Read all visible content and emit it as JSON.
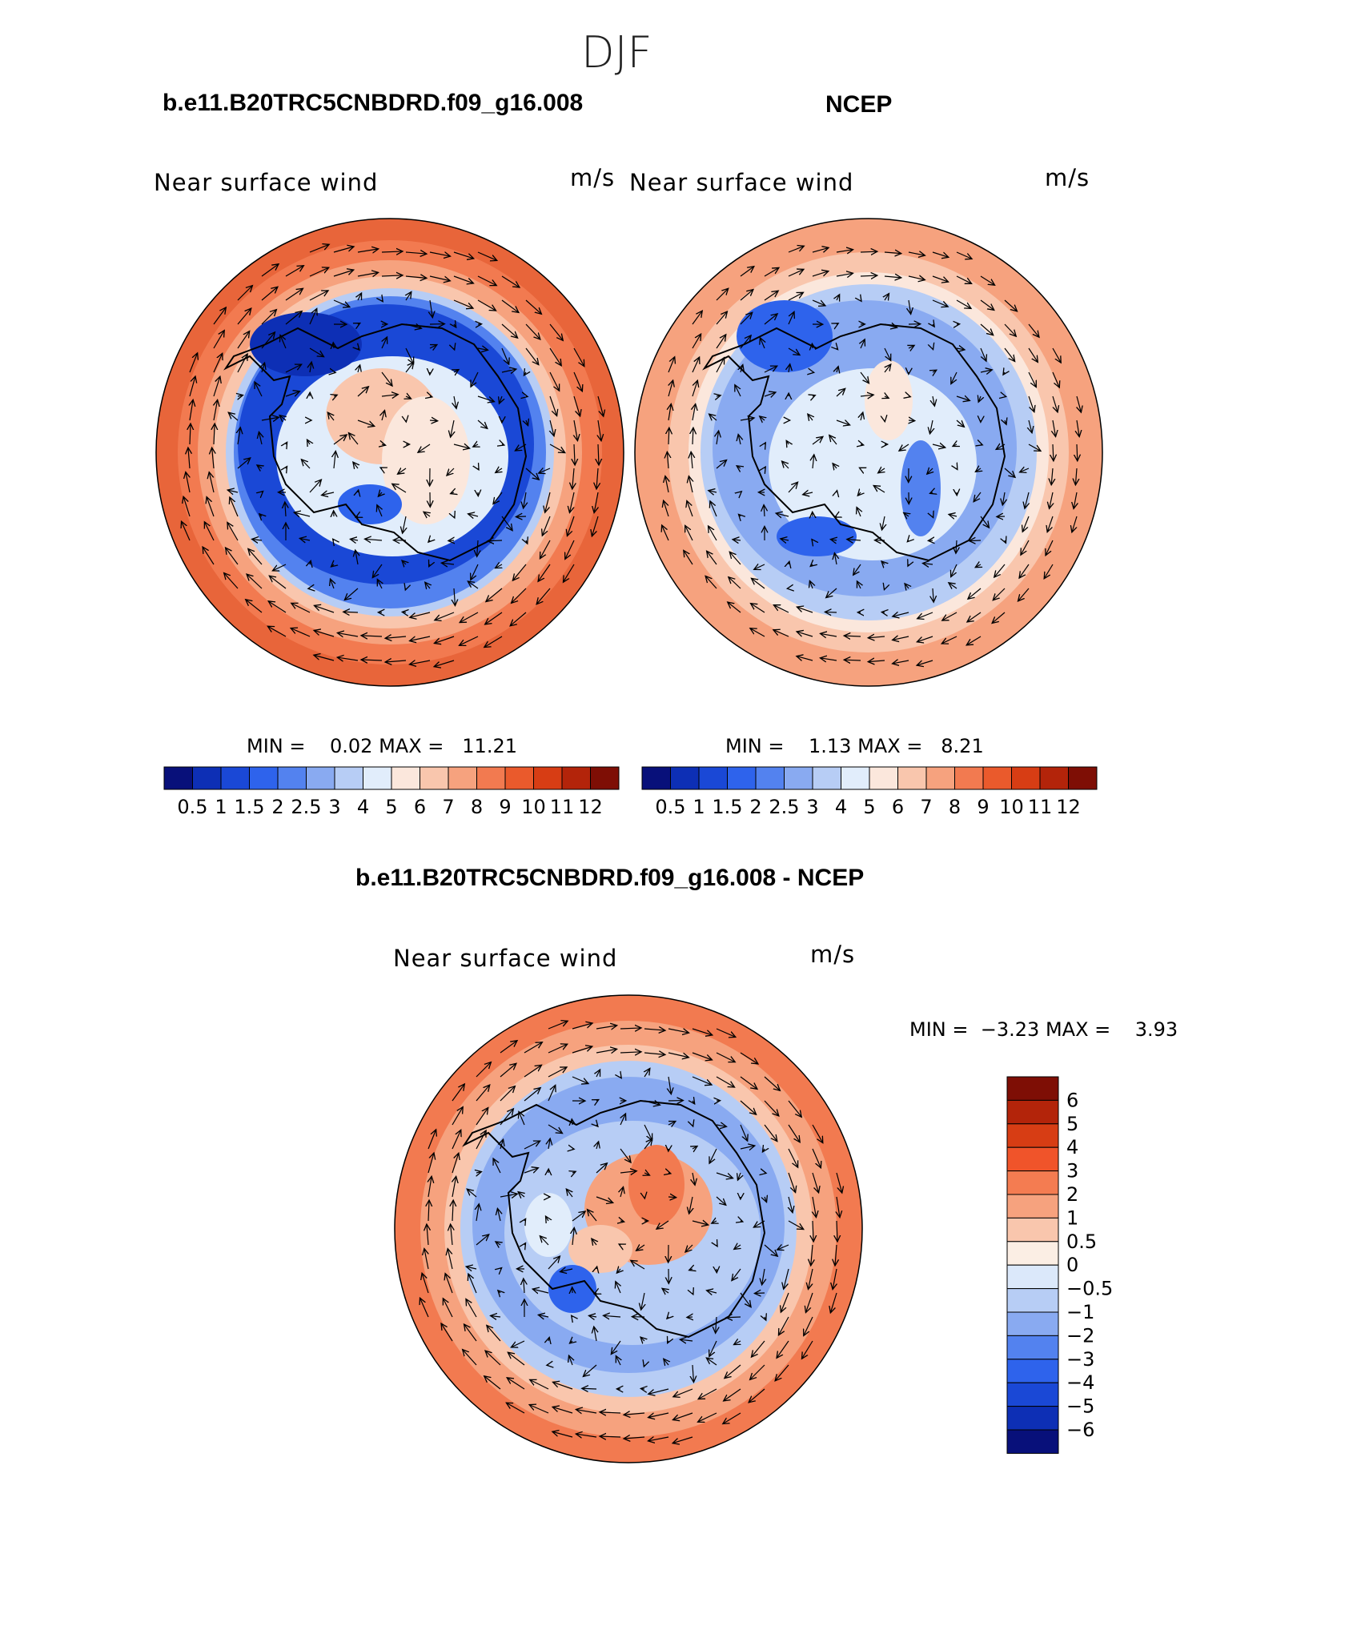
{
  "figure": {
    "season": "DJF",
    "panel_model": {
      "case": "b.e11.B20TRC5CNBDRD.f09_g16.008",
      "variable": "Near surface wind",
      "units": "m/s",
      "min_label": "MIN =",
      "min_value": "0.02",
      "max_label": "MAX =",
      "max_value": "11.21"
    },
    "panel_obs": {
      "case": "NCEP",
      "variable": "Near surface wind",
      "units": "m/s",
      "min_label": "MIN =",
      "min_value": "1.13",
      "max_label": "MAX =",
      "max_value": "8.21"
    },
    "panel_diff": {
      "case": "b.e11.B20TRC5CNBDRD.f09_g16.008 - NCEP",
      "variable": "Near surface wind",
      "units": "m/s",
      "min_label": "MIN =",
      "min_value": "−3.23",
      "max_label": "MAX =",
      "max_value": "3.93"
    }
  },
  "colorbar_abs": {
    "levels": [
      "0.5",
      "1",
      "1.5",
      "2",
      "2.5",
      "3",
      "4",
      "5",
      "6",
      "7",
      "8",
      "9",
      "10",
      "11",
      "12"
    ],
    "colors": [
      "#08107a",
      "#0d2fb5",
      "#1a48d6",
      "#2e63ec",
      "#5382ef",
      "#89aaf1",
      "#b7cdf5",
      "#e1edfb",
      "#fbe7dc",
      "#f9c6ad",
      "#f6a27e",
      "#f27a50",
      "#ea5a2c",
      "#d73d14",
      "#b3240a",
      "#7e0e05"
    ]
  },
  "colorbar_diff": {
    "levels": [
      "6",
      "5",
      "4",
      "3",
      "2",
      "1",
      "0.5",
      "0",
      "−0.5",
      "−1",
      "−2",
      "−3",
      "−4",
      "−5",
      "−6"
    ],
    "colors": [
      "#7e0e05",
      "#b3240a",
      "#d73d14",
      "#f0542a",
      "#f47c51",
      "#f6a27e",
      "#f9c6ad",
      "#fbeee4",
      "#dbe8fa",
      "#b7cdf5",
      "#89aaf1",
      "#5382ef",
      "#2e63ec",
      "#1a48d6",
      "#0d2fb5",
      "#08107a"
    ]
  }
}
